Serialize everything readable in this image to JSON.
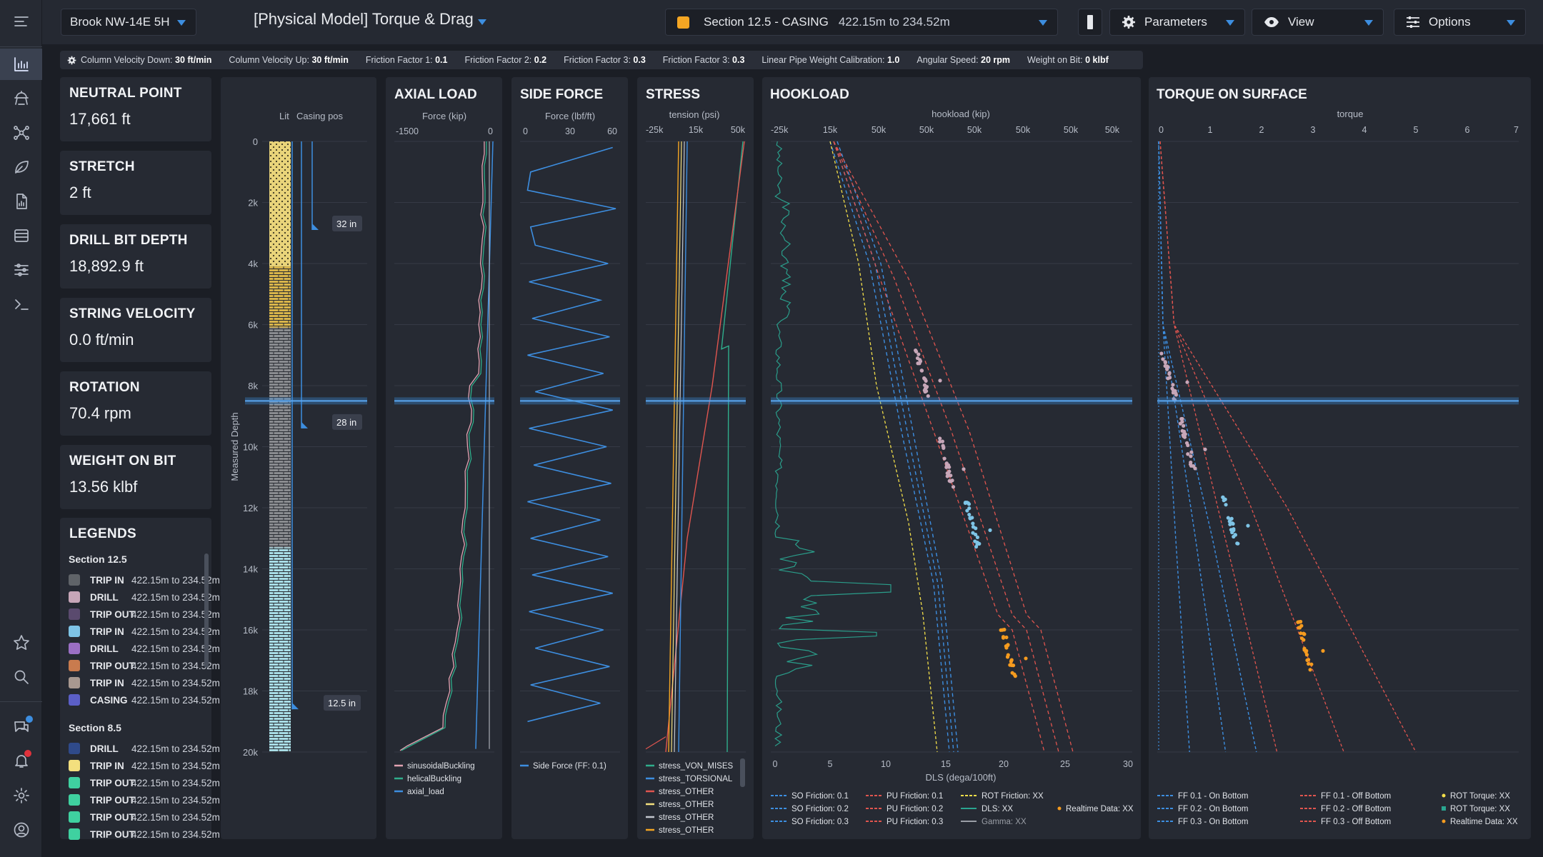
{
  "header": {
    "well": "Brook NW-14E 5H",
    "title": "[Physical Model] Torque & Drag",
    "section_label": "Section 12.5 - CASING",
    "section_range": "422.15m to 234.52m",
    "parameters": "Parameters",
    "view": "View",
    "options": "Options"
  },
  "colors": {
    "accent": "#3d8ee0",
    "section_swatch": "#f5a623",
    "panel_bg": "#262a33",
    "page_bg": "#1b1e25"
  },
  "params": [
    {
      "label": "Column Velocity Down:",
      "value": "30 ft/min"
    },
    {
      "label": "Column Velocity Up:",
      "value": "30 ft/min"
    },
    {
      "label": "Friction Factor 1:",
      "value": "0.1"
    },
    {
      "label": "Friction Factor 2:",
      "value": "0.2"
    },
    {
      "label": "Friction Factor 3:",
      "value": "0.3"
    },
    {
      "label": "Friction Factor 3:",
      "value": "0.3"
    },
    {
      "label": "Linear Pipe Weight Calibration:",
      "value": "1.0"
    },
    {
      "label": "Angular Speed:",
      "value": "20 rpm"
    },
    {
      "label": "Weight on Bit:",
      "value": "0 klbf"
    }
  ],
  "stats": [
    {
      "label": "NEUTRAL POINT",
      "value": "17,661 ft"
    },
    {
      "label": "STRETCH",
      "value": "2 ft"
    },
    {
      "label": "DRILL BIT DEPTH",
      "value": "18,892.9 ft"
    },
    {
      "label": "STRING VELOCITY",
      "value": "0.0 ft/min"
    },
    {
      "label": "ROTATION",
      "value": "70.4 rpm"
    },
    {
      "label": "WEIGHT ON BIT",
      "value": "13.56 klbf"
    }
  ],
  "legends": {
    "title": "LEGENDS",
    "sections": [
      {
        "name": "Section 12.5",
        "items": [
          {
            "type": "TRIP IN",
            "range": "422.15m to 234.52m",
            "color": "#5f6368"
          },
          {
            "type": "DRILL",
            "range": "422.15m to 234.52m",
            "color": "#c7a6b8"
          },
          {
            "type": "TRIP OUT",
            "range": "422.15m to 234.52m",
            "color": "#5a4a6e"
          },
          {
            "type": "TRIP IN",
            "range": "422.15m to 234.52m",
            "color": "#7ec4e6"
          },
          {
            "type": "DRILL",
            "range": "422.15m to 234.52m",
            "color": "#9b6fc4"
          },
          {
            "type": "TRIP OUT",
            "range": "422.15m to 234.52m",
            "color": "#c97b4e"
          },
          {
            "type": "TRIP IN",
            "range": "422.15m to 234.52m",
            "color": "#a89890"
          },
          {
            "type": "CASING",
            "range": "422.15m to 234.52m",
            "color": "#5b5fc7"
          }
        ]
      },
      {
        "name": "Section 8.5",
        "items": [
          {
            "type": "DRILL",
            "range": "422.15m to 234.52m",
            "color": "#2f4a8a"
          },
          {
            "type": "TRIP IN",
            "range": "422.15m to 234.52m",
            "color": "#f3df7e"
          },
          {
            "type": "TRIP OUT",
            "range": "422.15m to 234.52m",
            "color": "#3fd1a0"
          },
          {
            "type": "TRIP OUT",
            "range": "422.15m to 234.52m",
            "color": "#3fd1a0"
          },
          {
            "type": "TRIP OUT",
            "range": "422.15m to 234.52m",
            "color": "#3fd1a0"
          },
          {
            "type": "TRIP OUT",
            "range": "422.15m to 234.52m",
            "color": "#3fd1a0"
          }
        ]
      }
    ]
  },
  "chart_data": [
    {
      "type": "log-column",
      "title": "",
      "xlabel": "",
      "ylabel": "Measured Depth",
      "headers": [
        "Lit",
        "Casing pos"
      ],
      "depth_ticks": [
        "0",
        "2k",
        "4k",
        "6k",
        "8k",
        "10k",
        "12k",
        "14k",
        "16k",
        "18k",
        "20k"
      ],
      "ylim": [
        0,
        20000
      ],
      "lithology": [
        {
          "top": 0,
          "bottom": 4100,
          "color": "#e9d47a",
          "pattern": "dots"
        },
        {
          "top": 4100,
          "bottom": 6100,
          "color": "#d9b54a",
          "pattern": "bricks"
        },
        {
          "top": 6100,
          "bottom": 13300,
          "color": "#8a8c90",
          "pattern": "bricks"
        },
        {
          "top": 13300,
          "bottom": 20000,
          "color": "#a8dde6",
          "pattern": "bricks"
        }
      ],
      "casings": [
        {
          "size": "32 in",
          "depth": 2900
        },
        {
          "size": "28 in",
          "depth": 9400
        },
        {
          "size": "12.5 in",
          "depth": 18600
        }
      ],
      "current_depth": 8500
    },
    {
      "type": "line",
      "title": "AXIAL LOAD",
      "xlabel": "Force (kip)",
      "x_ticks": [
        "-1500",
        "0"
      ],
      "xlim": [
        -1500,
        0
      ],
      "ylim": [
        0,
        20000
      ],
      "legend": [
        "sinusoidalBuckling",
        "helicalBuckling",
        "axial_load"
      ]
    },
    {
      "type": "line",
      "title": "SIDE FORCE",
      "xlabel": "Force (lbf/ft)",
      "x_ticks": [
        "0",
        "30",
        "60"
      ],
      "xlim": [
        0,
        60
      ],
      "ylim": [
        0,
        20000
      ],
      "legend": [
        "Side Force (FF: 0.1)"
      ],
      "series": [
        {
          "name": "Side Force (FF: 0.1)",
          "x": [
            58,
            5,
            3,
            60,
            5,
            8,
            55,
            4,
            50,
            6,
            56,
            3,
            52,
            8,
            58,
            4,
            54,
            7,
            57,
            3,
            50,
            5,
            55,
            6,
            58,
            4,
            52,
            8,
            56,
            5,
            50,
            3
          ],
          "y": [
            200,
            1000,
            1600,
            2200,
            2800,
            3400,
            4000,
            4600,
            5200,
            5800,
            6400,
            7000,
            7600,
            8200,
            8800,
            9400,
            10000,
            10600,
            11200,
            11800,
            12400,
            13000,
            13600,
            14200,
            14800,
            15400,
            16000,
            16600,
            17200,
            17800,
            18400,
            19000
          ]
        }
      ]
    },
    {
      "type": "line",
      "title": "STRESS",
      "xlabel": "tension (psi)",
      "x_ticks": [
        "-25k",
        "15k",
        "50k"
      ],
      "xlim": [
        -25000,
        50000
      ],
      "ylim": [
        0,
        20000
      ],
      "legend": [
        "stress_VON_MISES",
        "stress_TORSIONAL",
        "stress_OTHER",
        "stress_OTHER",
        "stress_OTHER",
        "stress_OTHER"
      ]
    },
    {
      "type": "line",
      "title": "HOOKLOAD",
      "xlabel": "hookload (kip)",
      "bottom_xlabel": "DLS (dega/100ft)",
      "x_ticks": [
        "-25k",
        "15k",
        "50k",
        "50k",
        "50k",
        "50k",
        "50k",
        "50k"
      ],
      "bottom_ticks": [
        "0",
        "5",
        "10",
        "15",
        "20",
        "25",
        "30"
      ],
      "ylim": [
        0,
        20000
      ],
      "legend": [
        {
          "name": "SO Friction: 0.1",
          "style": "dash",
          "color": "#3d8ee0"
        },
        {
          "name": "SO Friction: 0.2",
          "style": "dash",
          "color": "#3d8ee0"
        },
        {
          "name": "SO Friction: 0.3",
          "style": "dash",
          "color": "#3d8ee0"
        },
        {
          "name": "PU Friction: 0.1",
          "style": "dash",
          "color": "#e0554f"
        },
        {
          "name": "PU Friction: 0.2",
          "style": "dash",
          "color": "#e0554f"
        },
        {
          "name": "PU Friction: 0.3",
          "style": "dash",
          "color": "#e0554f"
        },
        {
          "name": "ROT Friction: XX",
          "style": "dash",
          "color": "#f3df4a"
        },
        {
          "name": "DLS: XX",
          "style": "line",
          "color": "#2aa590"
        },
        {
          "name": "Gamma: XX",
          "style": "line",
          "color": "#9a9ea6"
        },
        {
          "name": "Realtime Data: XX",
          "style": "dot",
          "color": "#f59b1f"
        }
      ]
    },
    {
      "type": "line",
      "title": "TORQUE ON SURFACE",
      "xlabel": "torque",
      "x_ticks": [
        "0",
        "1",
        "2",
        "3",
        "4",
        "5",
        "6",
        "7"
      ],
      "xlim": [
        0,
        7
      ],
      "ylim": [
        0,
        20000
      ],
      "legend": [
        {
          "name": "FF 0.1 - On Bottom",
          "style": "dash",
          "color": "#3d8ee0"
        },
        {
          "name": "FF 0.2 - On Bottom",
          "style": "dash",
          "color": "#3d8ee0"
        },
        {
          "name": "FF 0.3 - On Bottom",
          "style": "dash",
          "color": "#3d8ee0"
        },
        {
          "name": "FF 0.1 - Off Bottom",
          "style": "dash",
          "color": "#e0554f"
        },
        {
          "name": "FF 0.2 - Off Bottom",
          "style": "dash",
          "color": "#e0554f"
        },
        {
          "name": "FF 0.3 - Off Bottom",
          "style": "dash",
          "color": "#e0554f"
        },
        {
          "name": "ROT Torque: XX",
          "style": "dot",
          "color": "#f3df4a"
        },
        {
          "name": "ROT Torque: XX",
          "style": "square",
          "color": "#2aa590"
        },
        {
          "name": "Realtime Data: XX",
          "style": "dot",
          "color": "#f59b1f"
        }
      ]
    }
  ]
}
